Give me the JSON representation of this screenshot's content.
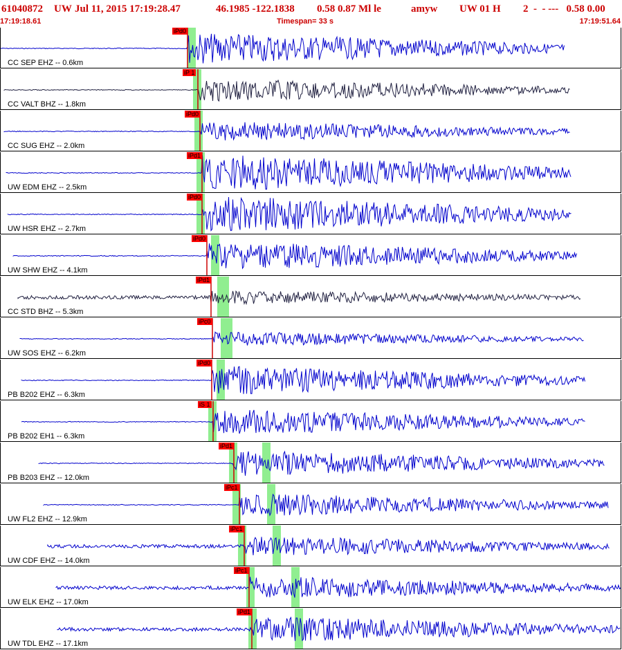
{
  "header": {
    "event_id": "61040872",
    "network": "UW",
    "datetime": "Jul 11, 2015 17:19:28.47",
    "location": "46.1985 -122.1838",
    "magnitudes": "0.58 0.87 Ml le",
    "analyst": "amyw",
    "source": "UW 01 H",
    "misc": "2  -  - ---   0.58 0.00",
    "start_time": "17:19:18.61",
    "timespan": "Timespan=  33 s",
    "end_time": "17:19:51.64"
  },
  "colors": {
    "header_text": "#cc0000",
    "trace_blue": "#0000cc",
    "trace_dark": "#202040",
    "pick_flag": "#ff0000",
    "pick_line": "#cc0000",
    "window_green": "#90ee90"
  },
  "traces": [
    {
      "label": "CC SEP EHZ -- 0.6km",
      "pick": "iPd0",
      "color": "blue"
    },
    {
      "label": "CC VALT BHZ -- 1.8km",
      "pick": "iP 1",
      "color": "dark"
    },
    {
      "label": "CC SUG EHZ -- 2.0km",
      "pick": "iPd0",
      "color": "blue"
    },
    {
      "label": "UW EDM EHZ -- 2.5km",
      "pick": "iPd1",
      "color": "blue"
    },
    {
      "label": "UW HSR EHZ -- 2.7km",
      "pick": "iPd0",
      "color": "blue"
    },
    {
      "label": "UW SHW EHZ -- 4.1km",
      "pick": "iPd0",
      "color": "blue"
    },
    {
      "label": "CC STD BHZ -- 5.3km",
      "pick": "iPd1",
      "color": "dark"
    },
    {
      "label": "UW SOS EHZ -- 6.2km",
      "pick": "iPc0",
      "color": "blue"
    },
    {
      "label": "PB B202 EHZ -- 6.3km",
      "pick": "iPd0",
      "color": "blue"
    },
    {
      "label": "PB B202 EH1 -- 6.3km",
      "pick": "iS 1",
      "color": "blue"
    },
    {
      "label": "PB B203 EHZ -- 12.0km",
      "pick": "iPd1",
      "color": "blue"
    },
    {
      "label": "UW FL2 EHZ -- 12.9km",
      "pick": "iPc1",
      "color": "blue"
    },
    {
      "label": "UW CDF EHZ -- 14.0km",
      "pick": "iPc1",
      "color": "blue"
    },
    {
      "label": "UW ELK EHZ -- 17.0km",
      "pick": "iPc1",
      "color": "blue"
    },
    {
      "label": "UW TDL EHZ -- 17.1km",
      "pick": "iPd1",
      "color": "blue"
    }
  ]
}
